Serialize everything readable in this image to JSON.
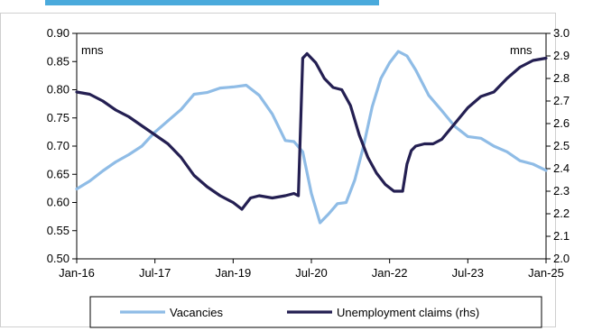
{
  "chart_data": {
    "type": "line",
    "title": "",
    "xlabel": "",
    "ylabel": "",
    "x_tick_labels": [
      "Jan-16",
      "Jul-17",
      "Jan-19",
      "Jul-20",
      "Jan-22",
      "Jul-23",
      "Jan-25"
    ],
    "x_range": [
      "2016-01",
      "2025-01"
    ],
    "y_left": {
      "unit_label": "mns",
      "ylim": [
        0.5,
        0.9
      ],
      "ticks": [
        "0.50",
        "0.55",
        "0.60",
        "0.65",
        "0.70",
        "0.75",
        "0.80",
        "0.85",
        "0.90"
      ]
    },
    "y_right": {
      "unit_label": "mns",
      "ylim": [
        2.0,
        3.0
      ],
      "ticks": [
        "2.0",
        "2.1",
        "2.2",
        "2.3",
        "2.4",
        "2.5",
        "2.6",
        "2.7",
        "2.8",
        "2.9",
        "3.0"
      ]
    },
    "grid": false,
    "legend_position": "bottom",
    "series": [
      {
        "name": "Vacancies",
        "axis": "left",
        "color": "#8fbce6",
        "x": [
          "2016-01",
          "2016-04",
          "2016-07",
          "2016-10",
          "2017-01",
          "2017-04",
          "2017-07",
          "2017-10",
          "2018-01",
          "2018-04",
          "2018-07",
          "2018-10",
          "2019-01",
          "2019-04",
          "2019-07",
          "2019-10",
          "2020-01",
          "2020-03",
          "2020-05",
          "2020-07",
          "2020-09",
          "2020-11",
          "2021-01",
          "2021-03",
          "2021-05",
          "2021-07",
          "2021-09",
          "2021-11",
          "2022-01",
          "2022-03",
          "2022-05",
          "2022-07",
          "2022-10",
          "2023-01",
          "2023-04",
          "2023-07",
          "2023-10",
          "2024-01",
          "2024-04",
          "2024-07",
          "2024-10",
          "2025-01"
        ],
        "values": [
          0.624,
          0.638,
          0.656,
          0.672,
          0.685,
          0.7,
          0.725,
          0.745,
          0.765,
          0.792,
          0.795,
          0.803,
          0.805,
          0.808,
          0.79,
          0.757,
          0.71,
          0.708,
          0.69,
          0.616,
          0.564,
          0.58,
          0.598,
          0.6,
          0.64,
          0.7,
          0.77,
          0.82,
          0.848,
          0.868,
          0.86,
          0.835,
          0.79,
          0.763,
          0.735,
          0.717,
          0.714,
          0.7,
          0.69,
          0.674,
          0.668,
          0.657
        ]
      },
      {
        "name": "Unemployment claims (rhs)",
        "axis": "right",
        "color": "#241f52",
        "x": [
          "2016-01",
          "2016-04",
          "2016-07",
          "2016-10",
          "2017-01",
          "2017-04",
          "2017-07",
          "2017-10",
          "2018-01",
          "2018-04",
          "2018-07",
          "2018-10",
          "2019-01",
          "2019-03",
          "2019-05",
          "2019-07",
          "2019-10",
          "2020-01",
          "2020-03",
          "2020-04",
          "2020-05",
          "2020-06",
          "2020-08",
          "2020-10",
          "2020-12",
          "2021-02",
          "2021-04",
          "2021-06",
          "2021-08",
          "2021-10",
          "2021-12",
          "2022-02",
          "2022-04",
          "2022-05",
          "2022-06",
          "2022-07",
          "2022-09",
          "2022-11",
          "2023-01",
          "2023-04",
          "2023-07",
          "2023-10",
          "2024-01",
          "2024-04",
          "2024-07",
          "2024-10",
          "2025-01"
        ],
        "values": [
          2.74,
          2.73,
          2.7,
          2.66,
          2.63,
          2.59,
          2.55,
          2.51,
          2.45,
          2.37,
          2.32,
          2.28,
          2.25,
          2.22,
          2.27,
          2.28,
          2.27,
          2.28,
          2.29,
          2.28,
          2.89,
          2.91,
          2.87,
          2.8,
          2.76,
          2.75,
          2.68,
          2.55,
          2.45,
          2.38,
          2.33,
          2.3,
          2.3,
          2.42,
          2.48,
          2.5,
          2.51,
          2.51,
          2.53,
          2.6,
          2.67,
          2.72,
          2.74,
          2.8,
          2.85,
          2.88,
          2.89
        ]
      }
    ]
  }
}
